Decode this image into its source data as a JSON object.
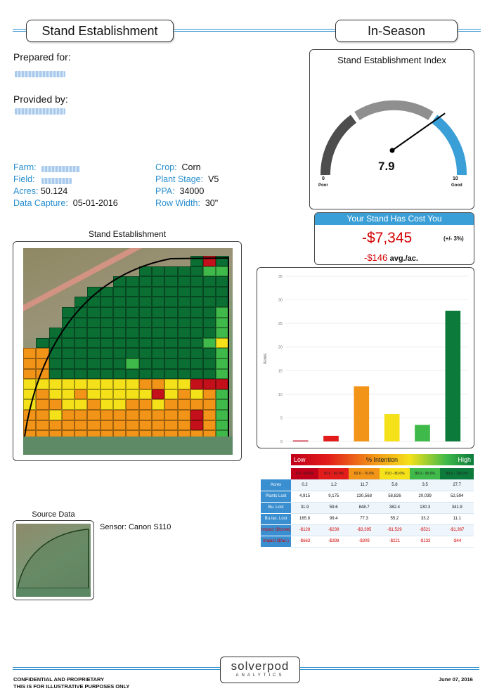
{
  "header": {
    "left_title": "Stand Establishment",
    "right_title": "In-Season"
  },
  "prepared_for_label": "Prepared for:",
  "provided_by_label": "Provided by:",
  "info": {
    "farm_label": "Farm:",
    "field_label": "Field:",
    "acres_label": "Acres:",
    "acres_value": "50.124",
    "capture_label": "Data Capture:",
    "capture_value": "05-01-2016",
    "crop_label": "Crop:",
    "crop_value": "Corn",
    "stage_label": "Plant Stage:",
    "stage_value": "V5",
    "ppa_label": "PPA:",
    "ppa_value": "34000",
    "row_label": "Row Width:",
    "row_value": "30\""
  },
  "gauge": {
    "title": "Stand Establishment Index",
    "value": "7.9",
    "value_num": 7.9,
    "min_label": "0",
    "min_word": "Poor",
    "max_label": "10",
    "max_word": "Good"
  },
  "cost": {
    "header": "Your Stand Has Cost You",
    "amount": "-$7,345",
    "tolerance": "(+/- 3%)",
    "per_acre": "-$146",
    "per_acre_unit": "avg./ac."
  },
  "map": {
    "title": "Stand Establishment"
  },
  "source": {
    "title": "Source Data",
    "sensor": "Sensor: Canon S110"
  },
  "chart_data": {
    "type": "bar",
    "categories": [
      "0.0 - 50.0%",
      "50.0 - 60.0%",
      "60.0 - 70.0%",
      "70.0 - 80.0%",
      "80.0 - 90.0%",
      "90.0 - 100.0%"
    ],
    "values": [
      0.2,
      1.2,
      11.7,
      5.8,
      3.5,
      27.7
    ],
    "ylabel": "Acres",
    "ylim": [
      0,
      35
    ],
    "yticks": [
      "0",
      "5",
      "10",
      "15",
      "20",
      "25",
      "30",
      "35"
    ],
    "colors": [
      "#c0001a",
      "#e21b1b",
      "#f29418",
      "#f5e11a",
      "#3fb94a",
      "#0b7a3b"
    ]
  },
  "legend": {
    "low": "Low",
    "mid": "% Intention",
    "high": "High"
  },
  "table": {
    "ranges": [
      "0.0 - 50.0%",
      "50.0 - 60.0%",
      "60.0 - 70.0%",
      "70.0 - 80.0%",
      "80.0 - 90.0%",
      "90.0 - 100.0%"
    ],
    "rows": [
      {
        "label": "Acres",
        "cells": [
          "0.2",
          "1.2",
          "11.7",
          "5.8",
          "3.5",
          "27.7"
        ]
      },
      {
        "label": "Plants Lost",
        "cells": [
          "4,915",
          "9,175",
          "130,568",
          "58,826",
          "20,039",
          "52,594"
        ]
      },
      {
        "label": "Bu. Lost",
        "cells": [
          "31.9",
          "59.6",
          "848.7",
          "382.4",
          "130.3",
          "341.9"
        ]
      },
      {
        "label": "Bu./ac. Lost",
        "cells": [
          "165.8",
          "99.4",
          "77.3",
          "55.2",
          "33.2",
          "11.1"
        ]
      },
      {
        "label": "Impact ($/zone)",
        "cells": [
          "-$128",
          "-$239",
          "-$3,395",
          "-$1,529",
          "-$521",
          "-$1,367"
        ]
      },
      {
        "label": "Impact ($/ac.)",
        "cells": [
          "-$663",
          "-$398",
          "-$309",
          "-$221",
          "-$133",
          "-$44"
        ]
      }
    ]
  },
  "footer": {
    "line1": "CONFIDENTIAL AND PROPRIETARY",
    "line2": "THIS IS FOR ILLUSTRATIVE PURPOSES ONLY",
    "date": "June 07, 2016",
    "logo_top": "solverpod",
    "logo_bottom": "ANALYTICS"
  }
}
